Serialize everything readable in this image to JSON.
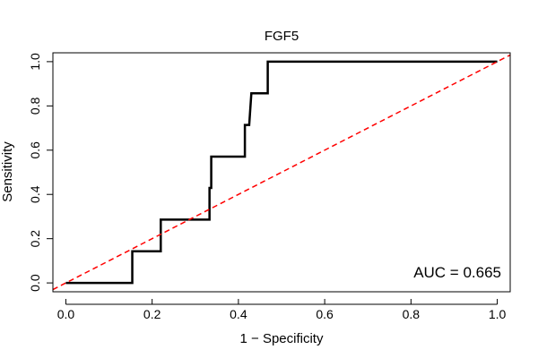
{
  "chart_data": {
    "type": "line",
    "title": "FGF5",
    "xlabel": "1 − Specificity",
    "ylabel": "Sensitivity",
    "xlim": [
      -0.03,
      1.03
    ],
    "ylim": [
      -0.04,
      1.04
    ],
    "x_ticks": [
      0.0,
      0.2,
      0.4,
      0.6,
      0.8,
      1.0
    ],
    "y_ticks": [
      0.0,
      0.2,
      0.4,
      0.6,
      0.8,
      1.0
    ],
    "x_tick_labels": [
      "0.0",
      "0.2",
      "0.4",
      "0.6",
      "0.8",
      "1.0"
    ],
    "y_tick_labels": [
      "0.0",
      "0.2",
      "0.4",
      "0.6",
      "0.8",
      "1.0"
    ],
    "grid": false,
    "annotation": "AUC = 0.665",
    "series": [
      {
        "name": "",
        "color": "#000000",
        "style": "solid",
        "x": [
          0.0,
          0.154,
          0.154,
          0.22,
          0.22,
          0.333,
          0.333,
          0.337,
          0.337,
          0.34,
          0.34,
          0.415,
          0.415,
          0.425,
          0.425,
          0.43,
          0.43,
          0.468,
          0.468,
          1.0
        ],
        "y": [
          0.0,
          0.0,
          0.143,
          0.143,
          0.286,
          0.286,
          0.429,
          0.429,
          0.571,
          0.571,
          0.571,
          0.571,
          0.714,
          0.714,
          0.714,
          0.857,
          0.857,
          0.857,
          1.0,
          1.0
        ]
      },
      {
        "name": "",
        "color": "#ff0000",
        "style": "dashed",
        "x": [
          -0.03,
          1.03
        ],
        "y": [
          -0.03,
          1.03
        ]
      }
    ]
  }
}
